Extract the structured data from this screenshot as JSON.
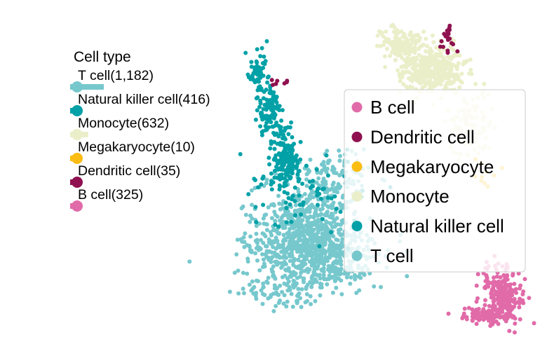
{
  "chart_data": {
    "type": "scatter",
    "title": "",
    "xlabel": "",
    "ylabel": "",
    "grid": false,
    "axes_visible": false,
    "colors": {
      "B cell": "#e16aa8",
      "Dendritic cell": "#8f1150",
      "Megakaryocyte": "#fbbd13",
      "Monocyte": "#ebefc9",
      "Natural killer cell": "#01a1a7",
      "T cell": "#76c8cd"
    },
    "bar_legend": {
      "title": "Cell type",
      "placement": "upper-left",
      "entries": [
        {
          "label": "T cell(1,182)",
          "category": "T cell",
          "count": 1182
        },
        {
          "label": "Natural killer cell(416)",
          "category": "Natural killer cell",
          "count": 416
        },
        {
          "label": "Monocyte(632)",
          "category": "Monocyte",
          "count": 632
        },
        {
          "label": "Megakaryocyte(10)",
          "category": "Megakaryocyte",
          "count": 10
        },
        {
          "label": "Dendritic cell(35)",
          "category": "Dendritic cell",
          "count": 35
        },
        {
          "label": "B cell(325)",
          "category": "B cell",
          "count": 325
        }
      ]
    },
    "legend": {
      "placement": "right",
      "entries": [
        "B cell",
        "Dendritic cell",
        "Megakaryocyte",
        "Monocyte",
        "Natural killer cell",
        "T cell"
      ]
    },
    "series": [
      {
        "name": "T cell",
        "count": 1182,
        "clusters": [
          {
            "cx": 448,
            "cy": 362,
            "sx": 44,
            "sy": 24,
            "n": 620
          },
          {
            "cx": 430,
            "cy": 318,
            "sx": 34,
            "sy": 24,
            "n": 320
          },
          {
            "cx": 470,
            "cy": 262,
            "sx": 34,
            "sy": 26,
            "n": 160
          },
          {
            "cx": 408,
            "cy": 418,
            "sx": 30,
            "sy": 12,
            "n": 82
          }
        ]
      },
      {
        "name": "Natural killer cell",
        "count": 416,
        "clusters": [
          {
            "cx": 408,
            "cy": 228,
            "sx": 9,
            "sy": 20,
            "n": 170
          },
          {
            "cx": 385,
            "cy": 160,
            "sx": 9,
            "sy": 18,
            "n": 110
          },
          {
            "cx": 368,
            "cy": 105,
            "sx": 6,
            "sy": 16,
            "n": 56
          },
          {
            "cx": 430,
            "cy": 270,
            "sx": 44,
            "sy": 34,
            "n": 80
          }
        ]
      },
      {
        "name": "Monocyte",
        "count": 632,
        "clusters": [
          {
            "cx": 615,
            "cy": 100,
            "sx": 22,
            "sy": 17,
            "n": 400
          },
          {
            "cx": 572,
            "cy": 62,
            "sx": 18,
            "sy": 10,
            "n": 130
          },
          {
            "cx": 672,
            "cy": 182,
            "sx": 16,
            "sy": 24,
            "n": 102
          }
        ]
      },
      {
        "name": "Megakaryocyte",
        "count": 10,
        "clusters": [
          {
            "cx": 690,
            "cy": 248,
            "sx": 10,
            "sy": 10,
            "n": 10
          }
        ]
      },
      {
        "name": "Dendritic cell",
        "count": 35,
        "clusters": [
          {
            "cx": 638,
            "cy": 48,
            "sx": 3,
            "sy": 6,
            "n": 20
          },
          {
            "cx": 402,
            "cy": 117,
            "sx": 14,
            "sy": 3,
            "n": 7
          },
          {
            "cx": 645,
            "cy": 68,
            "sx": 10,
            "sy": 6,
            "n": 8
          }
        ]
      },
      {
        "name": "B cell",
        "count": 325,
        "clusters": [
          {
            "cx": 718,
            "cy": 422,
            "sx": 12,
            "sy": 18,
            "n": 215
          },
          {
            "cx": 690,
            "cy": 450,
            "sx": 20,
            "sy": 6,
            "n": 90
          },
          {
            "cx": 700,
            "cy": 390,
            "sx": 10,
            "sy": 10,
            "n": 20
          }
        ]
      }
    ]
  }
}
